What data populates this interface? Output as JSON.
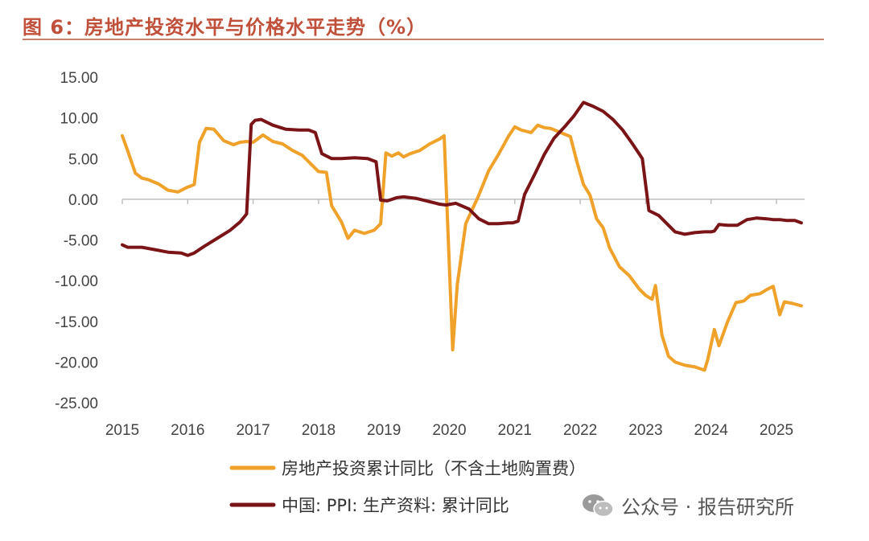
{
  "header": {
    "title": "图 6：房地产投资水平与价格水平走势（%）"
  },
  "watermark": {
    "text": "公众号 · 报告研究所"
  },
  "colors": {
    "title": "#c0503a",
    "rule": "#c8826c",
    "series1": "#f0a12a",
    "series2": "#7b1416"
  },
  "chart_data": {
    "type": "line",
    "ylim": [
      -25,
      15
    ],
    "yticks": [
      "15.00",
      "10.00",
      "5.00",
      "0.00",
      "-5.00",
      "-10.00",
      "-15.00",
      "-20.00",
      "-25.00"
    ],
    "ytick_values": [
      15,
      10,
      5,
      0,
      -5,
      -10,
      -15,
      -20,
      -25
    ],
    "xlim": [
      2015,
      2025.4
    ],
    "xticks": [
      "2015",
      "2016",
      "2017",
      "2018",
      "2019",
      "2020",
      "2021",
      "2022",
      "2023",
      "2024",
      "2025"
    ],
    "xtick_values": [
      2015,
      2016,
      2017,
      2018,
      2019,
      2020,
      2021,
      2022,
      2023,
      2024,
      2025
    ],
    "series": [
      {
        "name": "房地产投资累计同比（不含土地购置费）",
        "color": "#f0a12a",
        "x": [
          2015.0,
          2015.08,
          2015.2,
          2015.3,
          2015.4,
          2015.55,
          2015.7,
          2015.85,
          2016.0,
          2016.1,
          2016.18,
          2016.28,
          2016.4,
          2016.55,
          2016.7,
          2016.8,
          2016.9,
          2017.0,
          2017.15,
          2017.3,
          2017.45,
          2017.6,
          2017.75,
          2017.9,
          2018.0,
          2018.12,
          2018.2,
          2018.35,
          2018.45,
          2018.55,
          2018.7,
          2018.85,
          2018.95,
          2019.03,
          2019.12,
          2019.22,
          2019.3,
          2019.4,
          2019.55,
          2019.7,
          2019.85,
          2019.92,
          2020.05,
          2020.12,
          2020.25,
          2020.45,
          2020.6,
          2020.75,
          2020.9,
          2021.0,
          2021.1,
          2021.25,
          2021.35,
          2021.45,
          2021.55,
          2021.7,
          2021.85,
          2021.95,
          2022.05,
          2022.15,
          2022.25,
          2022.35,
          2022.45,
          2022.6,
          2022.75,
          2022.9,
          2023.0,
          2023.1,
          2023.15,
          2023.25,
          2023.35,
          2023.45,
          2023.6,
          2023.75,
          2023.9,
          2023.95,
          2024.05,
          2024.12,
          2024.25,
          2024.38,
          2024.5,
          2024.6,
          2024.75,
          2024.85,
          2024.95,
          2025.05,
          2025.12,
          2025.25,
          2025.38
        ],
        "y": [
          7.8,
          6.0,
          3.2,
          2.6,
          2.4,
          1.9,
          1.1,
          0.9,
          1.5,
          1.8,
          7.0,
          8.7,
          8.6,
          7.2,
          6.7,
          7.0,
          7.1,
          7.0,
          7.9,
          7.1,
          6.8,
          6.0,
          5.4,
          4.2,
          3.4,
          3.3,
          -0.8,
          -2.8,
          -4.8,
          -3.8,
          -4.2,
          -3.8,
          -3.0,
          5.7,
          5.3,
          5.7,
          5.2,
          5.6,
          6.0,
          6.8,
          7.4,
          7.8,
          -18.5,
          -10.5,
          -3.0,
          0.5,
          3.5,
          5.5,
          7.7,
          8.9,
          8.5,
          8.2,
          9.1,
          8.8,
          8.7,
          8.2,
          7.7,
          4.6,
          1.8,
          0.5,
          -2.4,
          -3.5,
          -6.0,
          -8.3,
          -9.4,
          -11.0,
          -11.8,
          -12.3,
          -10.6,
          -16.7,
          -19.3,
          -20.0,
          -20.4,
          -20.6,
          -21.0,
          -19.7,
          -16.0,
          -18.0,
          -15.1,
          -12.7,
          -12.5,
          -11.8,
          -11.6,
          -11.1,
          -10.7,
          -14.2,
          -12.6,
          -12.8,
          -13.1
        ]
      },
      {
        "name": "中国: PPI: 生产资料: 累计同比",
        "color": "#7b1416",
        "x": [
          2015.0,
          2015.08,
          2015.3,
          2015.5,
          2015.7,
          2015.9,
          2016.0,
          2016.1,
          2016.25,
          2016.45,
          2016.65,
          2016.8,
          2016.9,
          2016.97,
          2017.03,
          2017.12,
          2017.3,
          2017.5,
          2017.7,
          2017.85,
          2017.95,
          2018.05,
          2018.2,
          2018.35,
          2018.55,
          2018.75,
          2018.88,
          2018.95,
          2019.05,
          2019.2,
          2019.3,
          2019.5,
          2019.7,
          2019.85,
          2019.95,
          2020.1,
          2020.3,
          2020.45,
          2020.6,
          2020.75,
          2020.9,
          2020.97,
          2021.05,
          2021.15,
          2021.3,
          2021.45,
          2021.6,
          2021.75,
          2021.9,
          2021.97,
          2022.05,
          2022.2,
          2022.35,
          2022.5,
          2022.65,
          2022.8,
          2022.9,
          2022.95,
          2023.05,
          2023.2,
          2023.35,
          2023.45,
          2023.6,
          2023.75,
          2023.9,
          2024.0,
          2024.05,
          2024.12,
          2024.25,
          2024.4,
          2024.55,
          2024.7,
          2024.85,
          2024.95,
          2025.05,
          2025.15,
          2025.28,
          2025.38
        ],
        "y": [
          -5.6,
          -5.9,
          -5.9,
          -6.2,
          -6.5,
          -6.6,
          -6.9,
          -6.6,
          -5.8,
          -4.8,
          -3.8,
          -2.8,
          -1.8,
          9.2,
          9.7,
          9.8,
          9.1,
          8.6,
          8.5,
          8.5,
          8.2,
          5.6,
          5.0,
          5.0,
          5.1,
          5.0,
          4.6,
          -0.1,
          -0.2,
          0.2,
          0.3,
          0.1,
          -0.3,
          -0.6,
          -0.7,
          -0.5,
          -1.2,
          -2.4,
          -3.0,
          -3.0,
          -2.9,
          -2.9,
          -2.7,
          0.6,
          3.0,
          5.5,
          7.5,
          8.8,
          10.2,
          11.0,
          11.9,
          11.4,
          10.8,
          9.8,
          8.5,
          6.8,
          5.6,
          5.0,
          -1.4,
          -2.0,
          -3.2,
          -4.0,
          -4.3,
          -4.1,
          -4.0,
          -4.0,
          -3.9,
          -3.1,
          -3.2,
          -3.2,
          -2.5,
          -2.3,
          -2.4,
          -2.5,
          -2.5,
          -2.6,
          -2.6,
          -2.9
        ]
      }
    ]
  }
}
